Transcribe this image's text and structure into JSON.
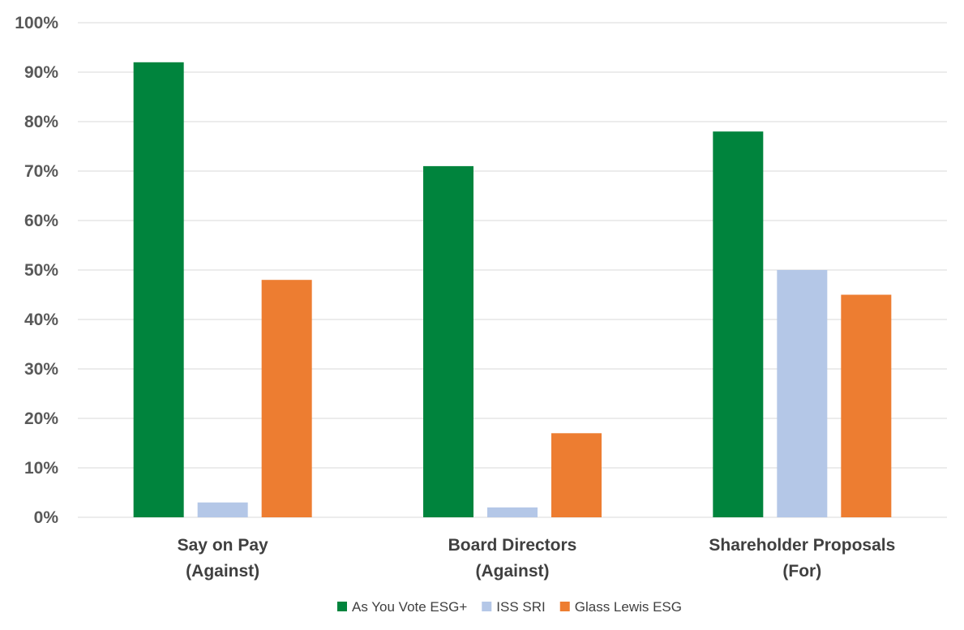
{
  "chart_data": {
    "type": "bar",
    "title": "",
    "xlabel": "",
    "ylabel": "",
    "categories": [
      [
        "Say on Pay",
        "(Against)"
      ],
      [
        "Board Directors",
        "(Against)"
      ],
      [
        "Shareholder Proposals",
        "(For)"
      ]
    ],
    "series": [
      {
        "name": "As You Vote ESG+",
        "color": "#00843d",
        "values": [
          92,
          71,
          78
        ]
      },
      {
        "name": "ISS SRI",
        "color": "#b4c7e7",
        "values": [
          3,
          2,
          50
        ]
      },
      {
        "name": "Glass Lewis ESG",
        "color": "#ed7d31",
        "values": [
          48,
          17,
          45
        ]
      }
    ],
    "ylim": [
      0,
      100
    ],
    "yticks": [
      0,
      10,
      20,
      30,
      40,
      50,
      60,
      70,
      80,
      90,
      100
    ],
    "ytick_labels": [
      "0%",
      "10%",
      "20%",
      "30%",
      "40%",
      "50%",
      "60%",
      "70%",
      "80%",
      "90%",
      "100%"
    ],
    "grid": true,
    "legend_position": "bottom"
  }
}
